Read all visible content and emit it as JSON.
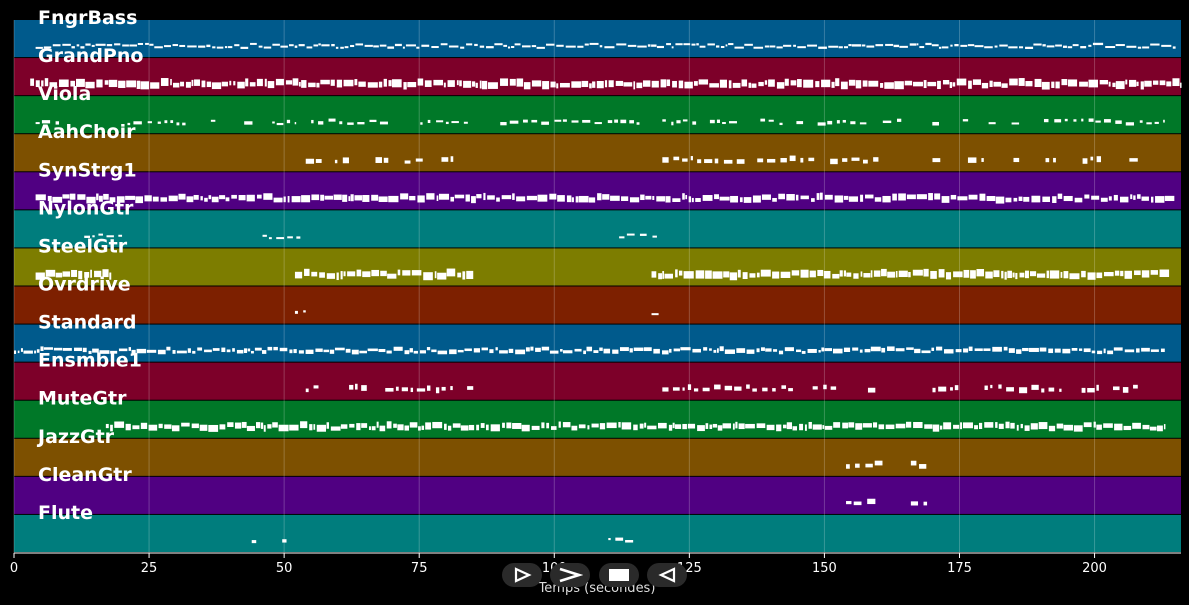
{
  "chart_data": {
    "type": "piano-roll",
    "xlabel": "Temps (secondes)",
    "xlim": [
      0,
      216
    ],
    "xticks": [
      0,
      25,
      50,
      75,
      100,
      125,
      150,
      175,
      200
    ],
    "grid": true,
    "tracks": [
      {
        "name": "FngrBass",
        "color": "#005a8c",
        "note_density": "dense",
        "thickness": 2,
        "active_ranges": [
          [
            4,
            215
          ]
        ]
      },
      {
        "name": "GrandPno",
        "color": "#7d0029",
        "note_density": "dense",
        "thickness": 7,
        "active_ranges": [
          [
            3,
            216
          ]
        ]
      },
      {
        "name": "Viola",
        "color": "#007828",
        "note_density": "sparse",
        "thickness": 3,
        "active_ranges": [
          [
            4,
            9
          ],
          [
            21,
            52
          ],
          [
            55,
            84
          ],
          [
            90,
            117
          ],
          [
            120,
            213
          ]
        ]
      },
      {
        "name": "AahChoir",
        "color": "#7d5000",
        "note_density": "sparse",
        "thickness": 5,
        "active_ranges": [
          [
            54,
            85
          ],
          [
            120,
            160
          ],
          [
            170,
            208
          ]
        ]
      },
      {
        "name": "SynStrg1",
        "color": "#500082",
        "note_density": "dense",
        "thickness": 6,
        "active_ranges": [
          [
            4,
            215
          ]
        ]
      },
      {
        "name": "NylonGtr",
        "color": "#007d7d",
        "note_density": "sparse",
        "thickness": 2,
        "active_ranges": [
          [
            13,
            20
          ],
          [
            46,
            53
          ],
          [
            112,
            119
          ]
        ]
      },
      {
        "name": "SteelGtr",
        "color": "#7d7d00",
        "note_density": "dense",
        "thickness": 7,
        "active_ranges": [
          [
            4,
            18
          ],
          [
            52,
            85
          ],
          [
            118,
            214
          ]
        ]
      },
      {
        "name": "Ovrdrive",
        "color": "#7d2000",
        "note_density": "sparse",
        "thickness": 3,
        "active_ranges": [
          [
            52,
            54
          ],
          [
            118,
            120
          ]
        ]
      },
      {
        "name": "Standard",
        "color": "#005a8c",
        "note_density": "dense",
        "thickness": 4,
        "active_ranges": [
          [
            0,
            213
          ]
        ]
      },
      {
        "name": "Ensmble1",
        "color": "#7d0029",
        "note_density": "sparse",
        "thickness": 5,
        "active_ranges": [
          [
            54,
            85
          ],
          [
            120,
            160
          ],
          [
            170,
            208
          ]
        ]
      },
      {
        "name": "MuteGtr",
        "color": "#007828",
        "note_density": "dense",
        "thickness": 6,
        "active_ranges": [
          [
            17,
            213
          ]
        ]
      },
      {
        "name": "JazzGtr",
        "color": "#7d5000",
        "note_density": "sparse",
        "thickness": 5,
        "active_ranges": [
          [
            154,
            161
          ],
          [
            166,
            169
          ]
        ]
      },
      {
        "name": "CleanGtr",
        "color": "#500082",
        "note_density": "sparse",
        "thickness": 5,
        "active_ranges": [
          [
            154,
            161
          ],
          [
            166,
            169
          ]
        ]
      },
      {
        "name": "Flute",
        "color": "#007d7d",
        "note_density": "sparse",
        "thickness": 3,
        "active_ranges": [
          [
            44,
            51
          ],
          [
            110,
            117
          ]
        ]
      }
    ]
  },
  "controls": [
    {
      "name": "play-button",
      "icon": "play-outline-icon"
    },
    {
      "name": "fast-forward-button",
      "icon": "chevron-right-icon"
    },
    {
      "name": "stop-button",
      "icon": "stop-icon"
    },
    {
      "name": "rewind-button",
      "icon": "play-reverse-outline-icon"
    }
  ]
}
